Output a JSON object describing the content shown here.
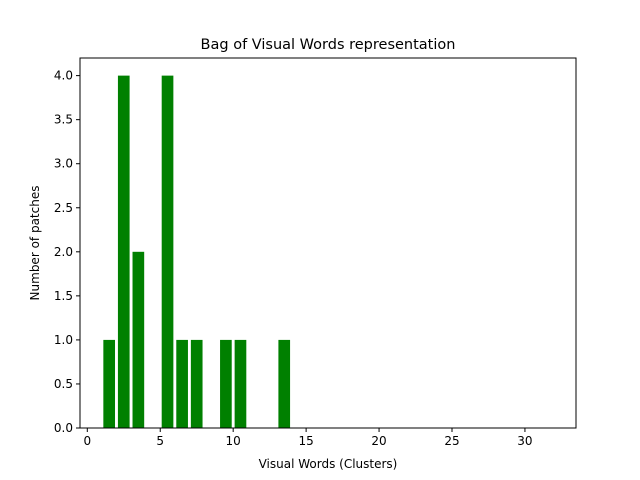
{
  "chart_data": {
    "type": "bar",
    "title": "Bag of Visual Words representation",
    "xlabel": "Visual Words (Clusters)",
    "ylabel": "Number of patches",
    "xlim": [
      -0.5,
      33.5
    ],
    "ylim": [
      0,
      4.2
    ],
    "xticks": [
      0,
      5,
      10,
      15,
      20,
      25,
      30
    ],
    "xtick_labels": [
      "0",
      "5",
      "10",
      "15",
      "20",
      "25",
      "30"
    ],
    "yticks": [
      0,
      0.5,
      1,
      1.5,
      2,
      2.5,
      3,
      3.5,
      4
    ],
    "ytick_labels": [
      "0.0",
      "0.5",
      "1.0",
      "1.5",
      "2.0",
      "2.5",
      "3.0",
      "3.5",
      "4.0"
    ],
    "bar_color": "#008000",
    "bar_width": 0.8,
    "grid": false,
    "x": [
      1.5,
      2.5,
      3.5,
      5.5,
      6.5,
      7.5,
      9.5,
      10.5,
      13.5
    ],
    "values": [
      1,
      4,
      2,
      4,
      1,
      1,
      1,
      1,
      1
    ]
  }
}
